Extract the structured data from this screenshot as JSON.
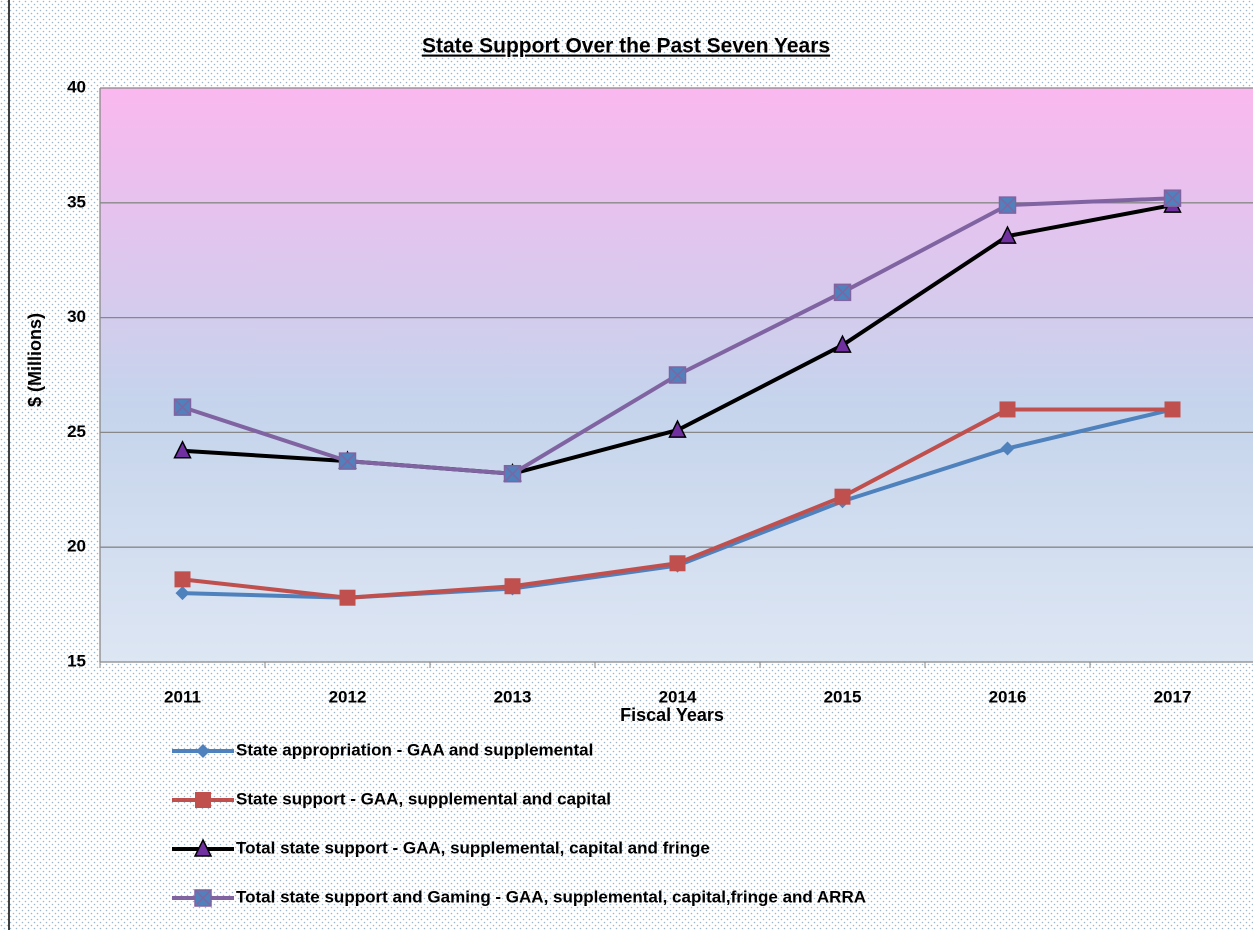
{
  "chart_data": {
    "type": "line",
    "title": "State Support Over the Past Seven Years",
    "x_label": "Fiscal Years",
    "y_label": "$ (Millions)",
    "categories": [
      "2011",
      "2012",
      "2013",
      "2014",
      "2015",
      "2016",
      "2017"
    ],
    "series": [
      {
        "name": "State appropriation - GAA and supplemental",
        "color": "#4f81bd",
        "marker": "diamond",
        "values": [
          18.0,
          17.8,
          18.2,
          19.2,
          22.0,
          24.3,
          26.0
        ]
      },
      {
        "name": "State support - GAA, supplemental and capital",
        "color": "#c0504d",
        "marker": "square",
        "values": [
          18.6,
          17.8,
          18.3,
          19.3,
          22.2,
          26.0,
          26.0
        ]
      },
      {
        "name": "Total state support - GAA, supplemental, capital and fringe",
        "color": "#000000",
        "marker": "triangle",
        "values": [
          24.2,
          23.75,
          23.2,
          25.1,
          28.8,
          33.55,
          34.9
        ]
      },
      {
        "name": "Total state support and Gaming - GAA, supplemental, capital,fringe and ARRA",
        "color": "#8064a2",
        "marker": "square-x",
        "values": [
          26.1,
          23.75,
          23.2,
          27.5,
          31.1,
          34.9,
          35.2
        ]
      }
    ],
    "ylim": [
      15,
      40
    ],
    "yticks": [
      15,
      20,
      25,
      30,
      35,
      40
    ],
    "grid": true,
    "legend": "bottom"
  }
}
